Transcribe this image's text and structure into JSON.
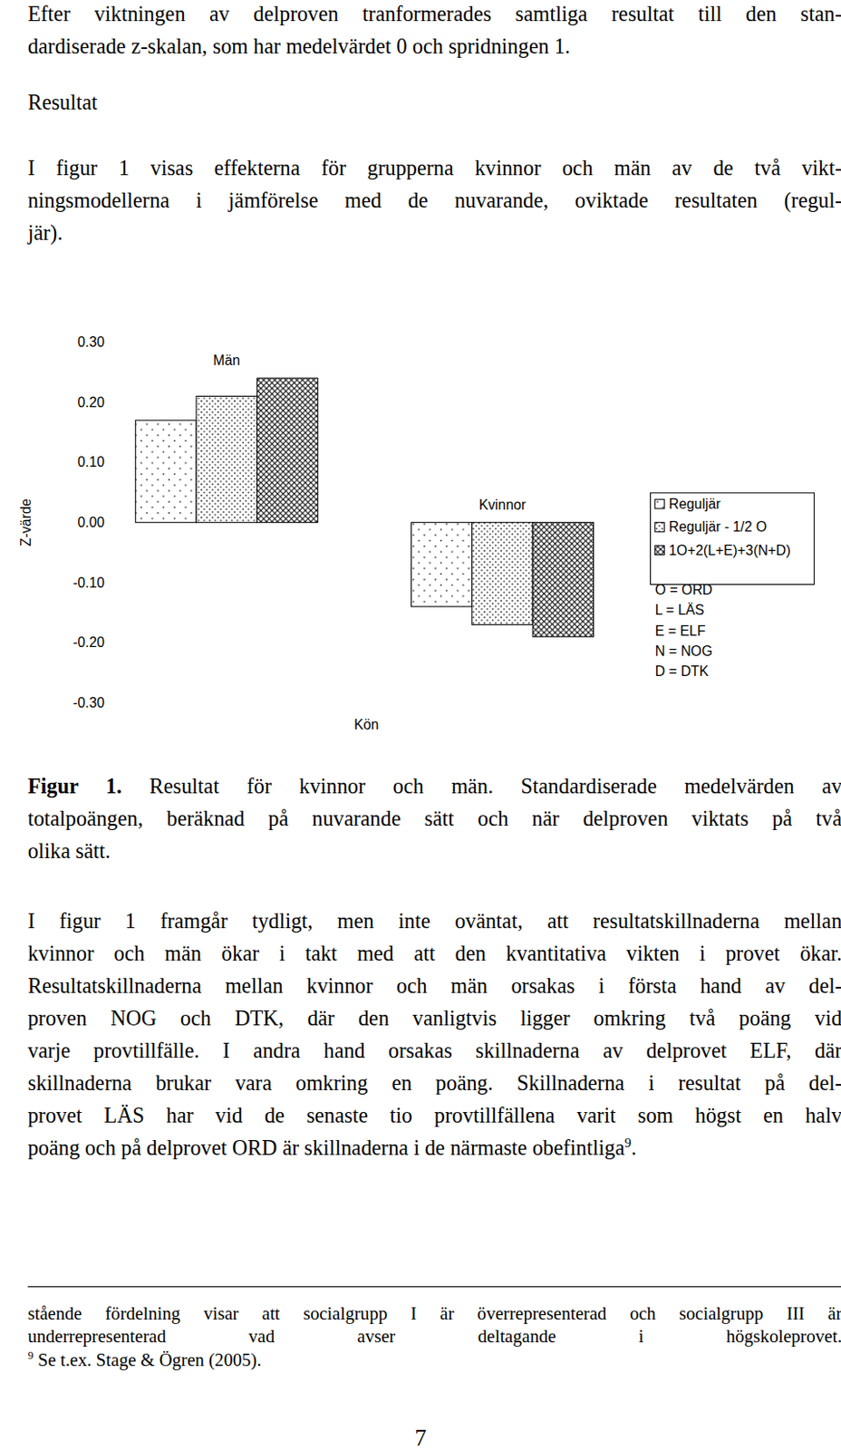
{
  "page": {
    "intro": [
      "Efter viktningen av delproven tranformerades samtliga resultat till den stan-",
      "dardiserade z-skalan, som har medelvärdet 0 och spridningen 1."
    ],
    "heading": "Resultat",
    "lead": [
      "I figur 1 visas effekterna för grupperna kvinnor och män av de två vikt-",
      "ningsmodellerna i jämförelse med de nuvarande, oviktade resultaten (regul-",
      "jär)."
    ],
    "caption": {
      "label": "Figur 1.",
      "lines": [
        "Resultat för kvinnor och män. Standardiserade medelvärden av",
        "totalpoängen, beräknad på nuvarande sätt och när delproven viktats på två",
        "olika sätt."
      ]
    },
    "body": [
      "I figur 1 framgår tydligt, men inte oväntat, att resultatskillnaderna mellan",
      "kvinnor och män ökar i takt med att den kvantitativa vikten i provet ökar.",
      "Resultatskillnaderna mellan kvinnor och män orsakas i första hand av del-",
      "proven NOG och DTK, där den vanligtvis ligger omkring två poäng vid",
      "varje provtillfälle. I andra hand orsakas skillnaderna av delprovet ELF, där",
      "skillnaderna brukar vara omkring en poäng. Skillnaderna i resultat på del-",
      "provet LÄS har vid de senaste tio provtillfällena varit som högst en halv",
      {
        "text": "poäng och på delprovet ORD är skillnaderna i de närmaste obefintliga",
        "sup": "9",
        "tail": "."
      }
    ],
    "footnotes": [
      "stående fördelning visar att socialgrupp I är överrepresenterad och socialgrupp III är",
      "underrepresenterad vad avser deltagande i högskoleprovet.",
      {
        "mark": "9",
        "text": "Se t.ex. Stage & Ögren (2005)."
      }
    ],
    "page_number": "7"
  },
  "chart_data": {
    "type": "bar",
    "categories": [
      "Män",
      "Kvinnor"
    ],
    "series": [
      {
        "name": "Reguljär",
        "color": "#000000",
        "values": [
          0.17,
          -0.14
        ]
      },
      {
        "name": "Reguljär - 1/2 O",
        "color": "#000000",
        "values": [
          0.21,
          -0.17
        ]
      },
      {
        "name": "1O+2(L+E)+3(N+D)",
        "color": "#000000",
        "values": [
          0.24,
          -0.19
        ]
      }
    ],
    "ylabel": "Z-värde",
    "xlabel": "Kön",
    "ylim": [
      -0.3,
      0.3
    ],
    "yticks": [
      {
        "value": 0.3,
        "label": "0.30"
      },
      {
        "value": 0.2,
        "label": "0.20"
      },
      {
        "value": 0.1,
        "label": "0.10"
      },
      {
        "value": 0,
        "label": "0.00"
      },
      {
        "value": -0.1,
        "label": "-0.10"
      },
      {
        "value": -0.2,
        "label": "-0.20"
      },
      {
        "value": -0.3,
        "label": "-0.30"
      }
    ],
    "annotations": [
      "O = ORD",
      "L = LÄS",
      "E = ELF",
      "N = NOG",
      "D = DTK"
    ],
    "legend": "right",
    "grid": false
  }
}
